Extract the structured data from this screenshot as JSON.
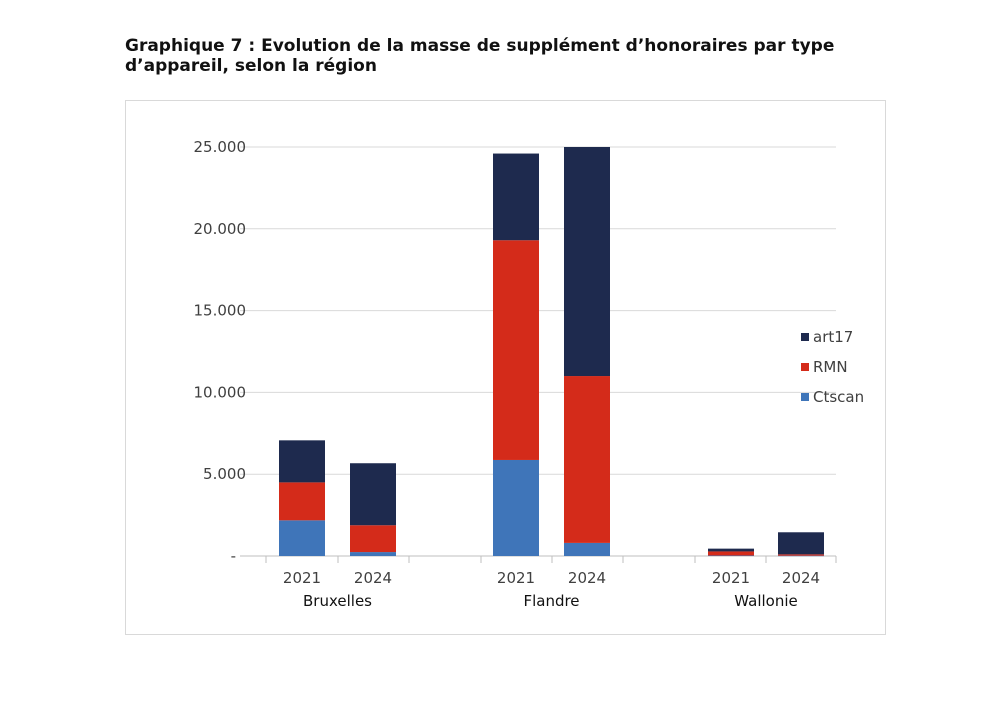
{
  "title": "Graphique 7 : Evolution de la masse de supplément d’honoraires par type d’appareil, selon la région",
  "chart_data": {
    "type": "bar",
    "stacked": true,
    "title": "Graphique 7 : Evolution de la masse de supplément d’honoraires par type d’appareil, selon la région",
    "groups": [
      "Bruxelles",
      "Flandre",
      "Wallonie"
    ],
    "categories": [
      "2021",
      "2024",
      "2021",
      "2024",
      "2021",
      "2024"
    ],
    "series": [
      {
        "name": "Ctscan",
        "color": "#3f75b9",
        "values": [
          2180,
          240,
          5870,
          800,
          30,
          20
        ]
      },
      {
        "name": "RMN",
        "color": "#d42b1a",
        "values": [
          2320,
          1640,
          13430,
          10200,
          250,
          80
        ]
      },
      {
        "name": "art17",
        "color": "#1e2a4e",
        "values": [
          2570,
          3790,
          5300,
          14000,
          170,
          1350
        ]
      }
    ],
    "yticks": [
      "-",
      "5.000",
      "10.000",
      "15.000",
      "20.000",
      "25.000"
    ],
    "ylim": [
      0,
      25000
    ],
    "grid": true,
    "legend": "right"
  }
}
